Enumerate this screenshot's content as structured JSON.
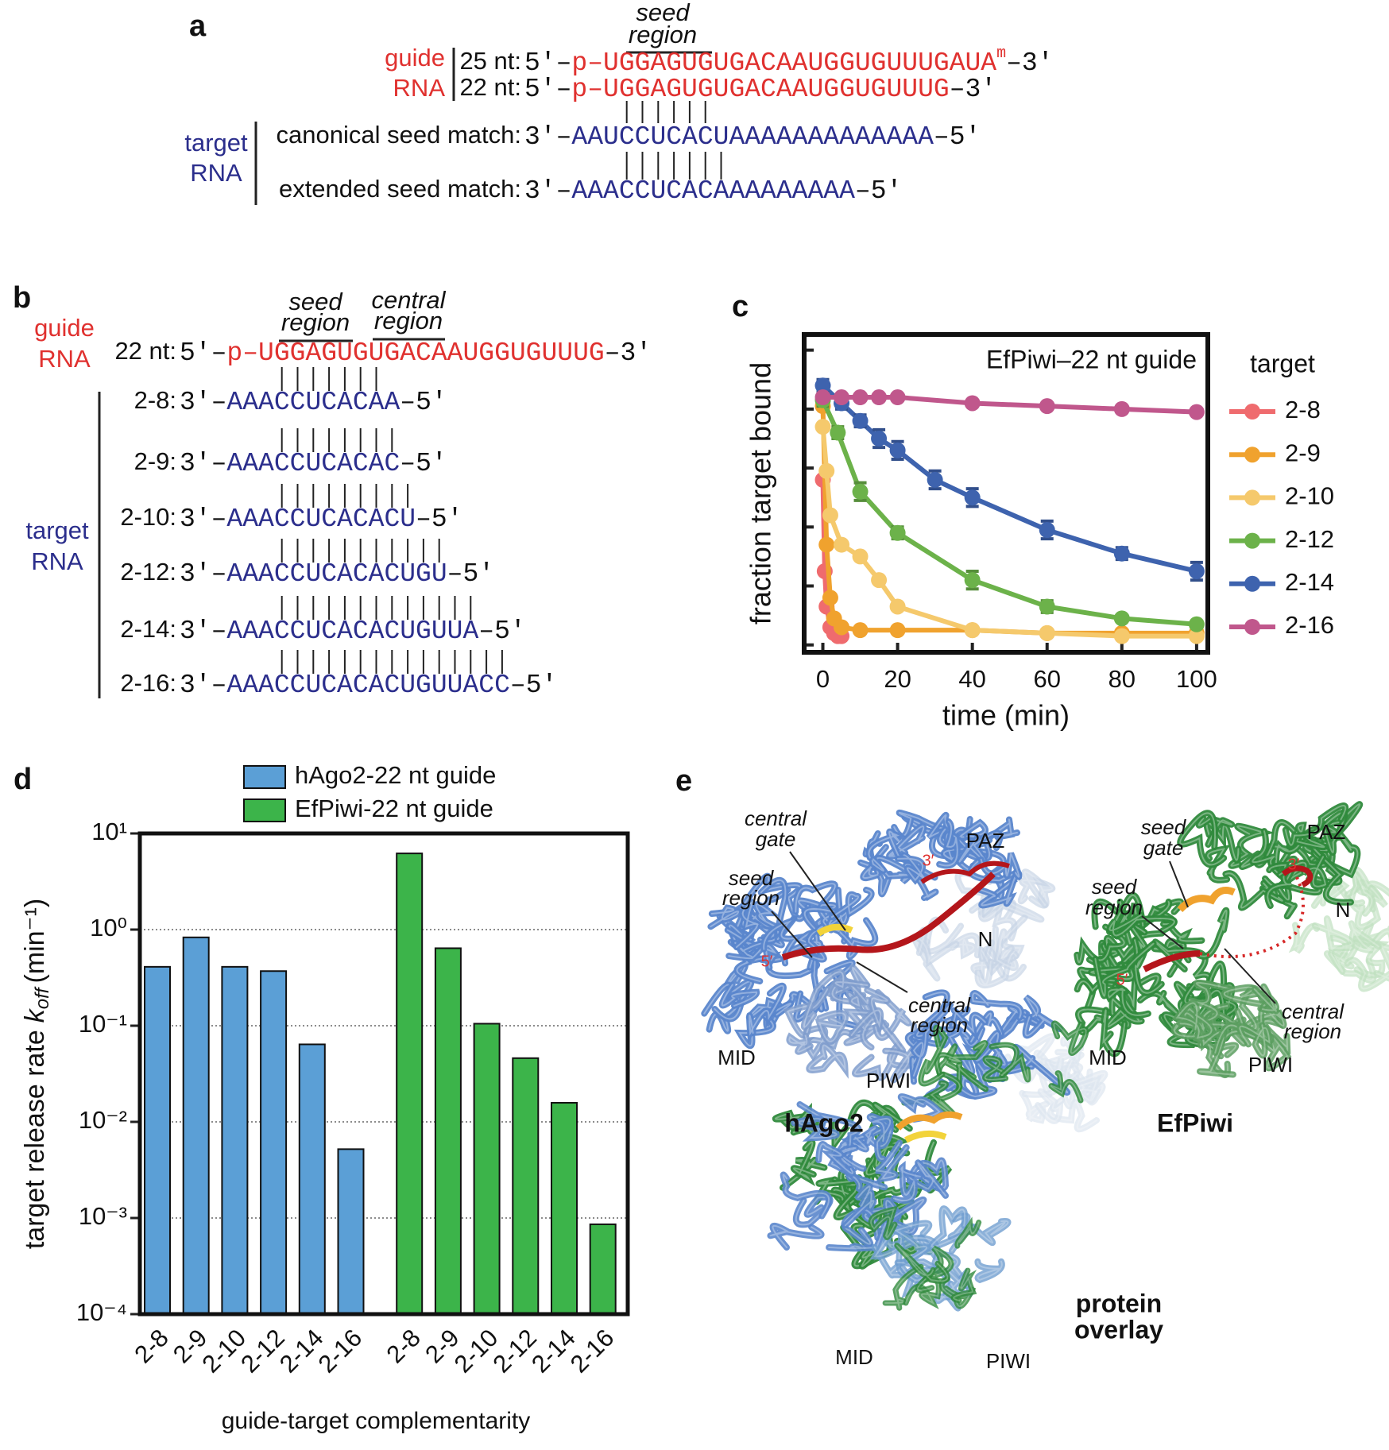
{
  "panel_labels": [
    "a",
    "b",
    "c",
    "d",
    "e"
  ],
  "panel_a": {
    "seed_label": [
      "seed",
      "region"
    ],
    "guide_label": [
      "guide",
      "RNA"
    ],
    "guides": [
      {
        "label": "25 nt:",
        "prefix": "5′–",
        "seq": "p–UGGAGUGUGACAAUGGUGUUUGAUA",
        "mod": "m",
        "suffix": "–3′"
      },
      {
        "label": "22 nt:",
        "prefix": "5′–",
        "seq": "p–UGGAGUGUGACAAUGGUGUUUG",
        "suffix": "–3′"
      }
    ],
    "target_label": [
      "target",
      "RNA"
    ],
    "targets": [
      {
        "label": "canonical seed match:",
        "prefix": "3′–",
        "seq": "AAUCCUCACUAAAAAAAAAAAAA",
        "suffix": "–5′"
      },
      {
        "label": "extended seed match:",
        "prefix": "3′–",
        "seq": "AAACCUCACAAAAAAAAA",
        "suffix": "–5′"
      }
    ]
  },
  "panel_b": {
    "seed_label": [
      "seed",
      "region"
    ],
    "central_label": [
      "central",
      "region"
    ],
    "guide_label": [
      "guide",
      "RNA"
    ],
    "guide": {
      "label": "22 nt:",
      "prefix": "5′–",
      "seq": "p–UGGAGUGUGACAAUGGUGUUUG",
      "suffix": "–3′"
    },
    "target_label": [
      "target",
      "RNA"
    ],
    "targets": [
      {
        "label": "2-8:",
        "prefix": "3′–",
        "seq": "AAACCUCACAA",
        "suffix": "–5′"
      },
      {
        "label": "2-9:",
        "prefix": "3′–",
        "seq": "AAACCUCACAC",
        "suffix": "–5′"
      },
      {
        "label": "2-10:",
        "prefix": "3′–",
        "seq": "AAACCUCACACU",
        "suffix": "–5′"
      },
      {
        "label": "2-12:",
        "prefix": "3′–",
        "seq": "AAACCUCACACUGU",
        "suffix": "–5′"
      },
      {
        "label": "2-14:",
        "prefix": "3′–",
        "seq": "AAACCUCACACUGUUA",
        "suffix": "–5′"
      },
      {
        "label": "2-16:",
        "prefix": "3′–",
        "seq": "AAACCUCACACUGUUACC",
        "suffix": "–5′"
      }
    ]
  },
  "chart_data": [
    {
      "type": "line",
      "title": "EfPiwi–22 nt guide",
      "xlabel": "time (min)",
      "ylabel": "fraction target bound",
      "legend_title": "target",
      "legend": "right",
      "xlim": [
        -5,
        103
      ],
      "ylim": [
        -0.025,
        1.053
      ],
      "xticks": [
        0,
        20,
        40,
        60,
        80,
        100
      ],
      "yticks": [
        0,
        0.2,
        0.4,
        0.6,
        0.8,
        1
      ],
      "ytick_labels": false,
      "series": [
        {
          "name": "2-8",
          "color": "#ef6b6e",
          "x": [
            0,
            0.5,
            1,
            2,
            3,
            4,
            5
          ],
          "values": [
            0.56,
            0.25,
            0.13,
            0.06,
            0.04,
            0.03,
            0.03
          ]
        },
        {
          "name": "2-9",
          "color": "#f0a22e",
          "x": [
            0,
            1,
            2,
            3,
            5,
            10,
            20,
            40,
            60,
            80,
            100
          ],
          "values": [
            0.81,
            0.34,
            0.16,
            0.09,
            0.06,
            0.05,
            0.05,
            0.05,
            0.04,
            0.04,
            0.04
          ]
        },
        {
          "name": "2-10",
          "color": "#f5c96c",
          "x": [
            0,
            1,
            2,
            5,
            10,
            15,
            20,
            40,
            60,
            80,
            100
          ],
          "values": [
            0.74,
            0.59,
            0.44,
            0.34,
            0.3,
            0.22,
            0.13,
            0.05,
            0.04,
            0.03,
            0.03
          ]
        },
        {
          "name": "2-12",
          "color": "#6cb24a",
          "x": [
            0,
            4,
            10,
            20,
            40,
            60,
            80,
            100
          ],
          "values": [
            0.83,
            0.72,
            0.52,
            0.38,
            0.22,
            0.13,
            0.09,
            0.07
          ],
          "errors": [
            0.02,
            0.02,
            0.03,
            0.02,
            0.03,
            0.02,
            0.01,
            0.01
          ]
        },
        {
          "name": "2-14",
          "color": "#3e63ae",
          "x": [
            0,
            5,
            10,
            15,
            20,
            30,
            40,
            60,
            80,
            100
          ],
          "values": [
            0.88,
            0.82,
            0.76,
            0.7,
            0.66,
            0.56,
            0.5,
            0.39,
            0.31,
            0.25
          ],
          "errors": [
            0.02,
            0.02,
            0.02,
            0.03,
            0.03,
            0.03,
            0.03,
            0.03,
            0.02,
            0.03
          ]
        },
        {
          "name": "2-16",
          "color": "#c0578c",
          "x": [
            0,
            5,
            10,
            15,
            20,
            40,
            60,
            80,
            100
          ],
          "values": [
            0.84,
            0.84,
            0.84,
            0.84,
            0.84,
            0.82,
            0.81,
            0.8,
            0.79
          ]
        }
      ]
    },
    {
      "type": "bar",
      "xlabel": "guide-target complementarity",
      "ylabel": "target release rate",
      "ylabel_var": "k",
      "ylabel_sub": "off",
      "ylabel_unit": "(min⁻¹)",
      "legend": "top",
      "log_y": true,
      "grid": true,
      "ylim": [
        0.0001,
        10
      ],
      "yticks": [
        {
          "value": 10,
          "label": "10¹"
        },
        {
          "value": 1,
          "label": "10⁰"
        },
        {
          "value": 0.1,
          "label": "10⁻¹"
        },
        {
          "value": 0.01,
          "label": "10⁻²"
        },
        {
          "value": 0.001,
          "label": "10⁻³"
        },
        {
          "value": 0.0001,
          "label": "10⁻⁴"
        }
      ],
      "categories": [
        "2-8",
        "2-9",
        "2-10",
        "2-12",
        "2-14",
        "2-16"
      ],
      "series": [
        {
          "name": "hAgo2-22 nt guide",
          "color": "#5b9fd6",
          "values": [
            0.41,
            0.83,
            0.41,
            0.37,
            0.064,
            0.0052
          ]
        },
        {
          "name": "EfPiwi-22 nt guide",
          "color": "#3cb44a",
          "values": [
            6.2,
            0.64,
            0.105,
            0.046,
            0.0158,
            0.00086
          ]
        }
      ]
    }
  ],
  "panel_e": {
    "hago2": {
      "name": "hAgo2",
      "central_gate": [
        "central",
        "gate"
      ],
      "seed_region": [
        "seed",
        "region"
      ],
      "central_region": [
        "central",
        "region"
      ],
      "paz": "PAZ",
      "n": "N",
      "mid": "MID",
      "piwi": "PIWI",
      "end3": "3′",
      "end5": "5′"
    },
    "efpiwi": {
      "name": "EfPiwi",
      "seed_gate": [
        "seed",
        "gate"
      ],
      "seed_region": [
        "seed",
        "region"
      ],
      "central_region": [
        "central",
        "region"
      ],
      "paz": "PAZ",
      "n": "N",
      "mid": "MID",
      "piwi": "PIWI",
      "end3": "3′",
      "end5": "5′"
    },
    "overlay": {
      "name": [
        "protein",
        "overlay"
      ],
      "mid": "MID",
      "piwi": "PIWI"
    }
  }
}
